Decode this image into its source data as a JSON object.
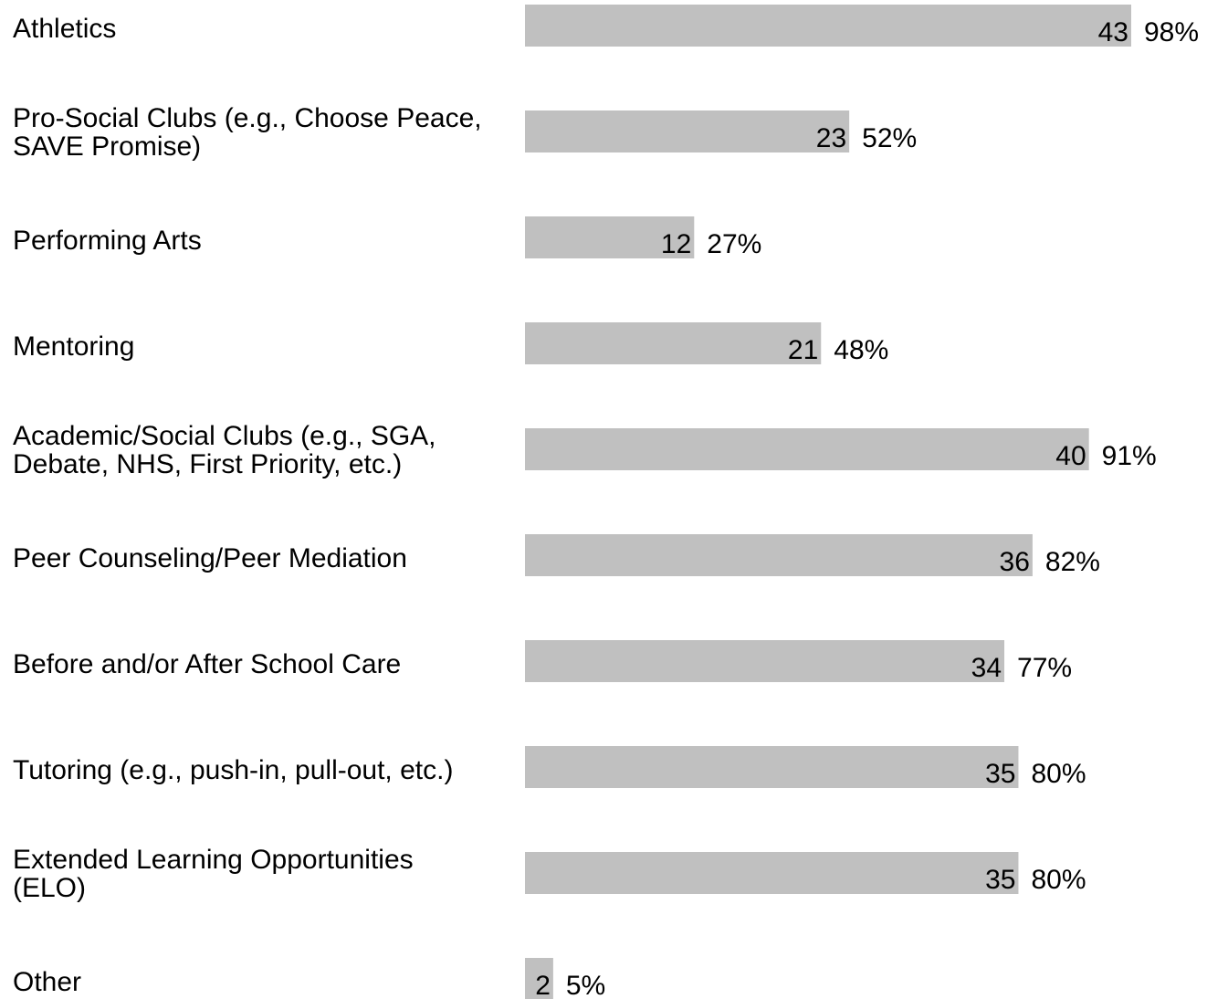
{
  "chart_data": {
    "type": "bar",
    "orientation": "horizontal",
    "categories": [
      [
        "Athletics"
      ],
      [
        "Pro-Social Clubs (e.g., Choose Peace,",
        "SAVE Promise)"
      ],
      [
        "Performing Arts"
      ],
      [
        "Mentoring"
      ],
      [
        "Academic/Social Clubs (e.g., SGA,",
        "Debate, NHS, First Priority, etc.)"
      ],
      [
        "Peer Counseling/Peer Mediation"
      ],
      [
        "Before and/or After School Care"
      ],
      [
        "Tutoring (e.g., push-in, pull-out, etc.)"
      ],
      [
        "Extended Learning Opportunities",
        "(ELO)"
      ],
      [
        "Other"
      ]
    ],
    "values": [
      43,
      23,
      12,
      21,
      40,
      36,
      34,
      35,
      35,
      2
    ],
    "value_labels": [
      "43",
      "23",
      "12",
      "21",
      "40",
      "36",
      "34",
      "35",
      "35",
      "2"
    ],
    "percent_labels": [
      "98%",
      "52%",
      "27%",
      "48%",
      "91%",
      "82%",
      "77%",
      "80%",
      "80%",
      "5%"
    ],
    "xlim": [
      0,
      44
    ],
    "grid": false,
    "legend": "none",
    "colors": {
      "bar": "#c0c0c0",
      "text": "#000000"
    }
  }
}
